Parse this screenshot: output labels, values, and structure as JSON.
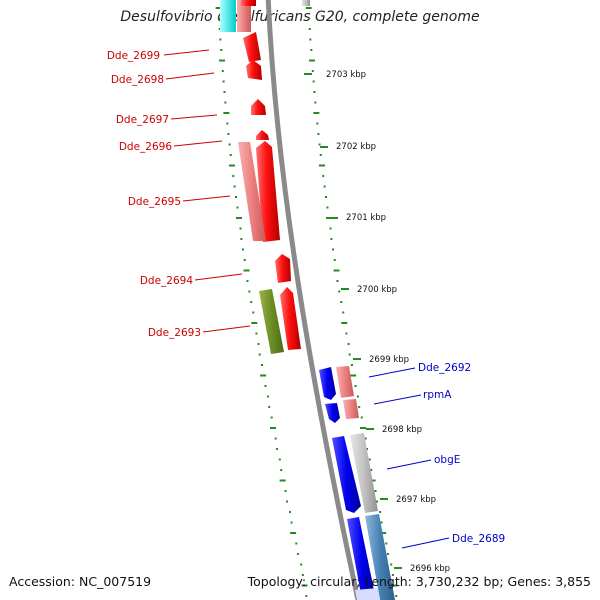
{
  "title": "Desulfovibrio desulfuricans G20, complete genome",
  "footer": {
    "accession": "Accession: NC_007519",
    "summary": "Topology: circular; Length: 3,730,232 bp; Genes: 3,855"
  },
  "colors": {
    "backbone": "#8a8a8a",
    "tick": "#228b22",
    "label_forward": "#cc0000",
    "label_reverse": "#0000cc"
  },
  "scale_labels": [
    "2703 kbp",
    "2702 kbp",
    "2701 kbp",
    "2700 kbp",
    "2699 kbp",
    "2698 kbp",
    "2697 kbp",
    "2696 kbp"
  ],
  "gene_labels_left": [
    "Dde_2699",
    "Dde_2698",
    "Dde_2697",
    "Dde_2696",
    "Dde_2695",
    "Dde_2694",
    "Dde_2693"
  ],
  "gene_labels_right": [
    "Dde_2692",
    "rpmA",
    "obgE",
    "Dde_2689"
  ]
}
